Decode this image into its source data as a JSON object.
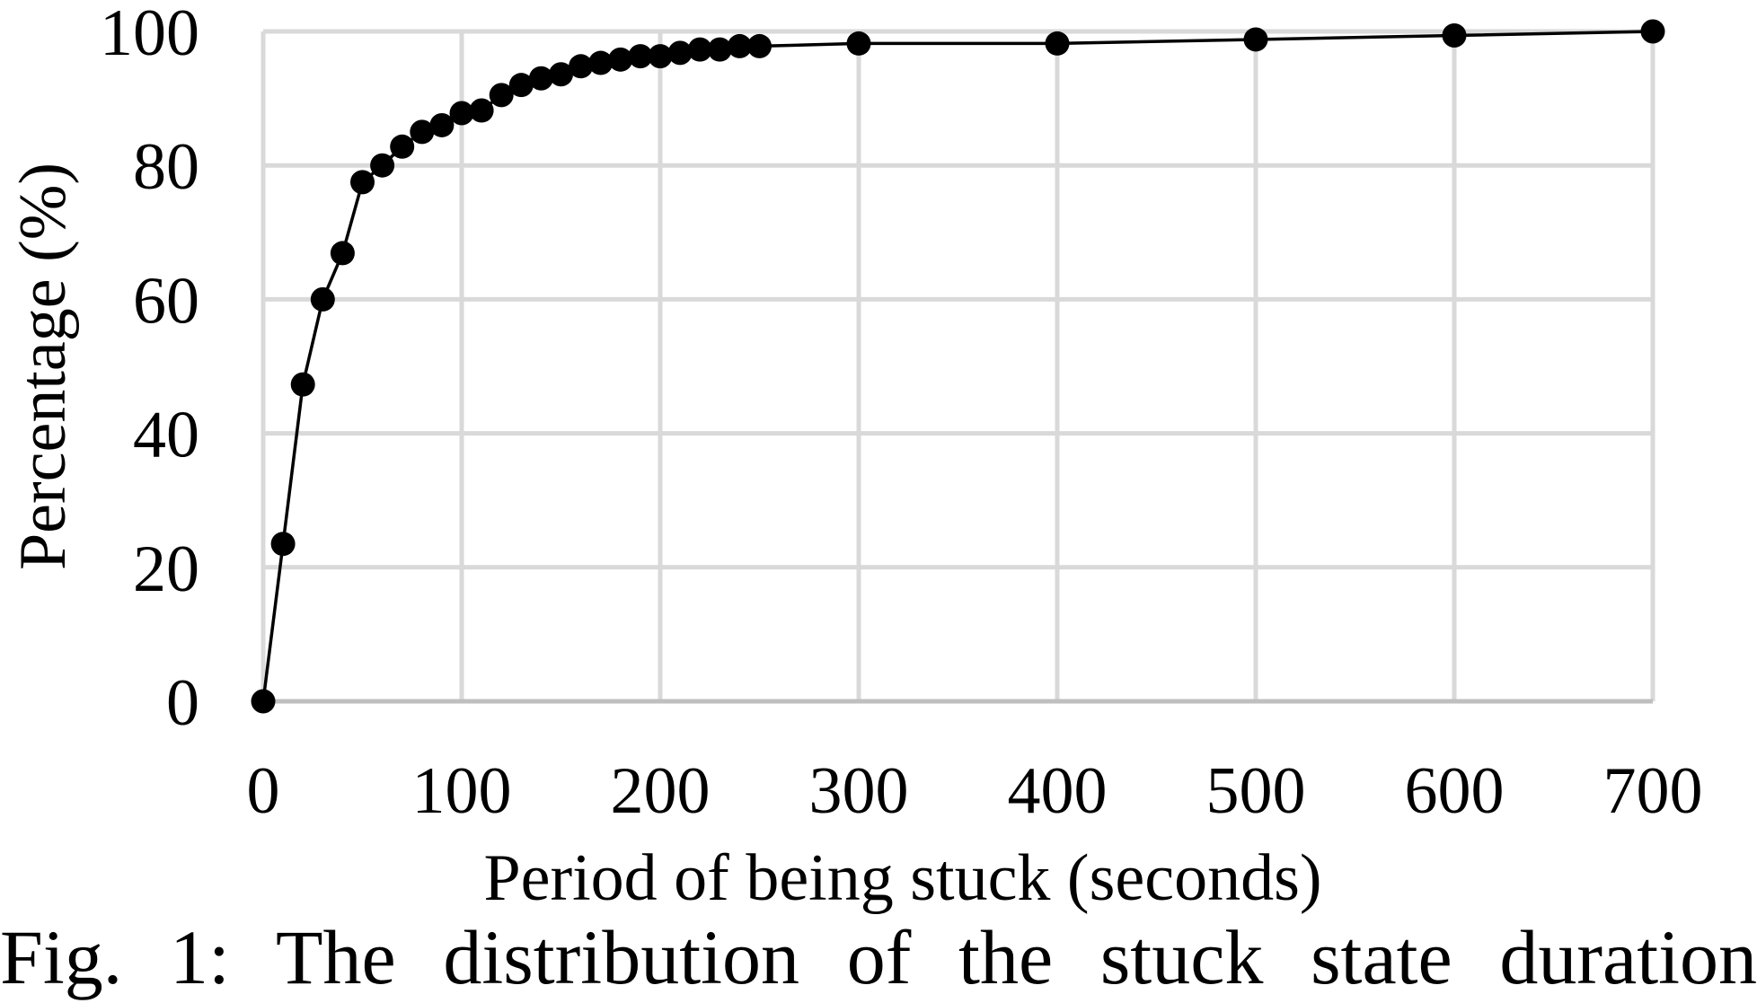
{
  "chart_data": {
    "type": "line",
    "title": "",
    "xlabel": "Period of being stuck (seconds)",
    "ylabel": "Percentage (%)",
    "xlim": [
      0,
      700
    ],
    "ylim": [
      0,
      100
    ],
    "xticks": [
      0,
      100,
      200,
      300,
      400,
      500,
      600,
      700
    ],
    "yticks": [
      0,
      20,
      40,
      60,
      80,
      100
    ],
    "xtick_labels": [
      "0",
      "100",
      "200",
      "300",
      "400",
      "500",
      "600",
      "700"
    ],
    "ytick_labels": [
      "0",
      "20",
      "40",
      "60",
      "80",
      "100"
    ],
    "grid": true,
    "legend": "none",
    "colors": {
      "line": "#000000",
      "marker": "#000000",
      "grid": "#d9d9d9",
      "axis": "#bfbfbf"
    },
    "series": [
      {
        "x": [
          0,
          10,
          20,
          30,
          40,
          50,
          60,
          70,
          80,
          90,
          100,
          110,
          120,
          130,
          140,
          150,
          160,
          170,
          180,
          190,
          200,
          210,
          220,
          230,
          240,
          250,
          300,
          400,
          500,
          600,
          700
        ],
        "y": [
          0,
          23.5,
          47.3,
          60.0,
          66.9,
          77.5,
          80.0,
          82.8,
          85.0,
          86.0,
          87.8,
          88.2,
          90.5,
          92.0,
          93.0,
          93.6,
          94.8,
          95.3,
          95.8,
          96.3,
          96.3,
          96.8,
          97.3,
          97.3,
          97.8,
          97.8,
          98.2,
          98.2,
          98.8,
          99.4,
          100
        ]
      }
    ]
  },
  "caption": "Fig. 1: The distribution of the stuck state duration"
}
